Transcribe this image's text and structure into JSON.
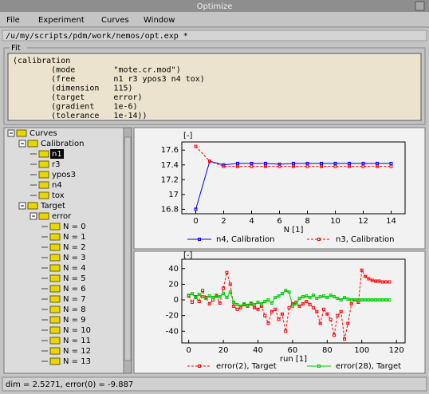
{
  "window": {
    "title": "Optimize",
    "menu": [
      "File",
      "Experiment",
      "Curves",
      "Window"
    ],
    "path": "/u/my/scripts/pdm/work/nemos/opt.exp *",
    "status": "dim = 2.5271, error(0) = -9.887"
  },
  "fit": {
    "label": "Fit",
    "lines": [
      "(calibration",
      "        (mode        \"mote.cr.mod\")",
      "        (free        n1 r3 ypos3 n4 tox)",
      "        (dimension   115)",
      "        (target      error)",
      "        (gradient    1e-6)",
      "        (tolerance   1e-14))"
    ]
  },
  "tree": {
    "label": "Curves",
    "children": [
      {
        "label": "Calibration",
        "children": [
          {
            "label": "n1",
            "selected": true
          },
          {
            "label": "r3"
          },
          {
            "label": "ypos3"
          },
          {
            "label": "n4"
          },
          {
            "label": "tox"
          }
        ]
      },
      {
        "label": "Target",
        "children": [
          {
            "label": "error",
            "children": [
              {
                "label": "N = 0"
              },
              {
                "label": "N = 1"
              },
              {
                "label": "N = 2"
              },
              {
                "label": "N = 3"
              },
              {
                "label": "N = 4"
              },
              {
                "label": "N = 5"
              },
              {
                "label": "N = 6"
              },
              {
                "label": "N = 7"
              },
              {
                "label": "N = 8"
              },
              {
                "label": "N = 9"
              },
              {
                "label": "N = 10"
              },
              {
                "label": "N = 11"
              },
              {
                "label": "N = 12"
              },
              {
                "label": "N = 13"
              }
            ]
          }
        ]
      }
    ]
  },
  "chart_data": [
    {
      "type": "line",
      "y_label": "[-]",
      "x_label": "N [1]",
      "x": [
        0,
        1,
        2,
        3,
        4,
        5,
        6,
        7,
        8,
        9,
        10,
        11,
        12,
        13,
        14
      ],
      "series": [
        {
          "name": "n4, Calibration",
          "color": "#0000ff",
          "values": [
            16.8,
            17.45,
            17.4,
            17.42,
            17.42,
            17.42,
            17.41,
            17.42,
            17.42,
            17.42,
            17.42,
            17.42,
            17.42,
            17.42,
            17.42
          ]
        },
        {
          "name": "n3, Calibration",
          "color": "#ff0000",
          "style": "dashed",
          "values": [
            17.65,
            17.45,
            17.38,
            17.38,
            17.38,
            17.38,
            17.38,
            17.38,
            17.38,
            17.38,
            17.38,
            17.38,
            17.38,
            17.38,
            17.38
          ]
        }
      ],
      "xlim": [
        -1,
        15
      ],
      "ylim": [
        16.74,
        17.71
      ],
      "xticks": [
        0,
        2,
        4,
        6,
        8,
        10,
        12,
        14
      ],
      "yticks": [
        16.8,
        17,
        17.2,
        17.4,
        17.6
      ]
    },
    {
      "type": "line",
      "y_label": "[-]",
      "x_label": "run [1]",
      "x": [
        0,
        2,
        4,
        6,
        8,
        10,
        12,
        14,
        16,
        18,
        20,
        22,
        24,
        26,
        28,
        30,
        32,
        34,
        36,
        38,
        40,
        42,
        44,
        46,
        48,
        50,
        52,
        54,
        56,
        58,
        60,
        62,
        64,
        66,
        68,
        70,
        72,
        74,
        76,
        78,
        80,
        82,
        84,
        86,
        88,
        90,
        92,
        94,
        96,
        98,
        100,
        102,
        104,
        106,
        108,
        110,
        112,
        114,
        116
      ],
      "series": [
        {
          "name": "error(2), Target",
          "color": "#ff0000",
          "style": "dashed",
          "values": [
            5,
            -3,
            4,
            -2,
            12,
            3,
            -5,
            0,
            5,
            -4,
            15,
            35,
            20,
            -8,
            -12,
            -10,
            -6,
            -8,
            -5,
            -10,
            -12,
            -8,
            -20,
            -30,
            -15,
            -12,
            -25,
            -18,
            -40,
            -10,
            -5,
            -3,
            -8,
            -5,
            -2,
            -6,
            -10,
            -15,
            -30,
            -12,
            -18,
            -25,
            -45,
            -20,
            -15,
            -50,
            -30,
            -5,
            0,
            -3,
            38,
            30,
            27,
            25,
            24,
            24,
            23,
            23,
            23
          ]
        },
        {
          "name": "error(28), Target",
          "color": "#00cc00",
          "values": [
            6,
            8,
            3,
            7,
            4,
            2,
            5,
            3,
            6,
            4,
            8,
            3,
            10,
            -3,
            -6,
            -8,
            -5,
            -7,
            -4,
            -6,
            -3,
            -5,
            -2,
            0,
            -4,
            3,
            5,
            8,
            12,
            10,
            -8,
            -5,
            2,
            4,
            5,
            3,
            6,
            2,
            4,
            5,
            3,
            6,
            4,
            2,
            0,
            3,
            1,
            0,
            0,
            0,
            0,
            0,
            0,
            0,
            0,
            0,
            0,
            0,
            0
          ]
        }
      ],
      "xlim": [
        -4,
        125
      ],
      "ylim": [
        -55,
        52
      ],
      "xticks": [
        0,
        20,
        40,
        60,
        80,
        100,
        120
      ],
      "yticks": [
        -40,
        -20,
        0,
        20,
        40
      ]
    }
  ]
}
